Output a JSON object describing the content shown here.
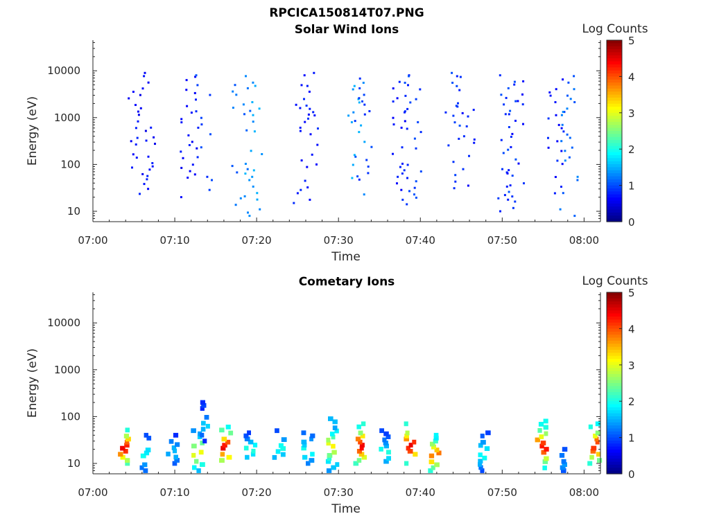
{
  "figure_title": "RPCICA150814T07.PNG",
  "chart_data": [
    {
      "type": "heatmap",
      "title": "Solar Wind Ions",
      "xlabel": "Time",
      "ylabel": "Energy (eV)",
      "xlim": [
        "07:00",
        "08:02"
      ],
      "x_ticks": [
        "07:00",
        "07:10",
        "07:20",
        "07:30",
        "07:40",
        "07:50",
        "08:00"
      ],
      "yscale": "log",
      "ylim": [
        6,
        45000
      ],
      "y_ticks": [
        "10",
        "100",
        "1000",
        "10000"
      ],
      "colorbar": {
        "label": "Log Counts",
        "range": [
          0,
          5
        ],
        "ticks": [
          "0",
          "1",
          "2",
          "3",
          "4",
          "5"
        ],
        "colormap": "jet"
      },
      "bursts": [
        {
          "t": 5.3,
          "e_min": 20,
          "e_max": 8000,
          "level": 0.1
        },
        {
          "t": 6.5,
          "e_min": 30,
          "e_max": 9000,
          "level": 0.1
        },
        {
          "t": 11.5,
          "e_min": 20,
          "e_max": 12000,
          "level": 0.1
        },
        {
          "t": 13.5,
          "e_min": 15,
          "e_max": 8000,
          "level": 0.15
        },
        {
          "t": 18.0,
          "e_min": 10,
          "e_max": 8000,
          "level": 0.2
        },
        {
          "t": 19.5,
          "e_min": 8,
          "e_max": 9000,
          "level": 0.25
        },
        {
          "t": 25.5,
          "e_min": 15,
          "e_max": 8000,
          "level": 0.12
        },
        {
          "t": 26.5,
          "e_min": 20,
          "e_max": 9000,
          "level": 0.12
        },
        {
          "t": 32.0,
          "e_min": 12,
          "e_max": 9000,
          "level": 0.25
        },
        {
          "t": 33.0,
          "e_min": 25,
          "e_max": 8000,
          "level": 0.15
        },
        {
          "t": 37.5,
          "e_min": 15,
          "e_max": 8000,
          "level": 0.12
        },
        {
          "t": 39.0,
          "e_min": 12,
          "e_max": 9000,
          "level": 0.15
        },
        {
          "t": 44.0,
          "e_min": 10,
          "e_max": 9000,
          "level": 0.15
        },
        {
          "t": 45.5,
          "e_min": 30,
          "e_max": 12000,
          "level": 0.12
        },
        {
          "t": 50.5,
          "e_min": 10,
          "e_max": 8000,
          "level": 0.15
        },
        {
          "t": 51.5,
          "e_min": 15,
          "e_max": 7000,
          "level": 0.12
        },
        {
          "t": 56.5,
          "e_min": 15,
          "e_max": 9000,
          "level": 0.12
        },
        {
          "t": 58.0,
          "e_min": 8,
          "e_max": 9000,
          "level": 0.2
        }
      ]
    },
    {
      "type": "heatmap",
      "title": "Cometary Ions",
      "xlabel": "Time",
      "ylabel": "Energy (eV)",
      "xlim": [
        "07:00",
        "08:02"
      ],
      "x_ticks": [
        "07:00",
        "07:10",
        "07:20",
        "07:30",
        "07:40",
        "07:50",
        "08:00"
      ],
      "yscale": "log",
      "ylim": [
        6,
        45000
      ],
      "y_ticks": [
        "10",
        "100",
        "1000",
        "10000"
      ],
      "colorbar": {
        "label": "Log Counts",
        "range": [
          0,
          5
        ],
        "ticks": [
          "0",
          "1",
          "2",
          "3",
          "4",
          "5"
        ],
        "colormap": "jet"
      },
      "bursts": [
        {
          "t": 3.5,
          "e_min": 10,
          "e_max": 60,
          "level": 0.35
        },
        {
          "t": 6.3,
          "e_min": 7,
          "e_max": 40,
          "level": 0.15
        },
        {
          "t": 9.5,
          "e_min": 10,
          "e_max": 40,
          "level": 0.12
        },
        {
          "t": 12.5,
          "e_min": 7,
          "e_max": 50,
          "level": 0.25
        },
        {
          "t": 13.5,
          "e_min": 30,
          "e_max": 200,
          "level": 0.12
        },
        {
          "t": 16.0,
          "e_min": 10,
          "e_max": 60,
          "level": 0.35
        },
        {
          "t": 19.0,
          "e_min": 10,
          "e_max": 45,
          "level": 0.15
        },
        {
          "t": 22.5,
          "e_min": 10,
          "e_max": 50,
          "level": 0.15
        },
        {
          "t": 26.0,
          "e_min": 10,
          "e_max": 45,
          "level": 0.15
        },
        {
          "t": 29.0,
          "e_min": 7,
          "e_max": 90,
          "level": 0.25
        },
        {
          "t": 32.3,
          "e_min": 10,
          "e_max": 70,
          "level": 0.35
        },
        {
          "t": 35.5,
          "e_min": 7,
          "e_max": 50,
          "level": 0.15
        },
        {
          "t": 38.5,
          "e_min": 10,
          "e_max": 70,
          "level": 0.35
        },
        {
          "t": 41.5,
          "e_min": 7,
          "e_max": 40,
          "level": 0.3
        },
        {
          "t": 47.5,
          "e_min": 7,
          "e_max": 45,
          "level": 0.15
        },
        {
          "t": 54.5,
          "e_min": 8,
          "e_max": 80,
          "level": 0.35
        },
        {
          "t": 57.0,
          "e_min": 7,
          "e_max": 20,
          "level": 0.1
        },
        {
          "t": 61.0,
          "e_min": 10,
          "e_max": 70,
          "level": 0.35
        }
      ]
    }
  ]
}
